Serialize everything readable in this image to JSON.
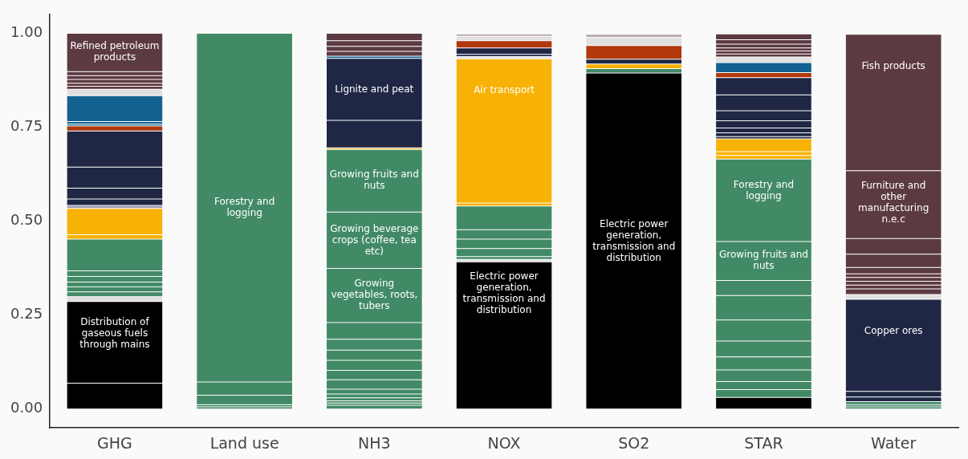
{
  "chart_data": {
    "type": "bar",
    "stacked": true,
    "categories": [
      "GHG",
      "Land use",
      "NH3",
      "NOX",
      "SO2",
      "STAR",
      "Water"
    ],
    "ylim": [
      -0.05,
      1.05
    ],
    "yticks": [
      {
        "value": 0,
        "label": "0.00"
      },
      {
        "value": 0.25,
        "label": "0.25"
      },
      {
        "value": 0.5,
        "label": "0.50"
      },
      {
        "value": 0.75,
        "label": "0.75"
      },
      {
        "value": 1,
        "label": "1.00"
      }
    ],
    "grid": false,
    "legend": false,
    "series": [
      {
        "color": "#000000",
        "values": [
          0.069,
          null,
          null,
          null,
          null,
          null,
          null
        ]
      },
      {
        "name": "Distribution of gaseous fuels through mains",
        "color": "#000000",
        "values": [
          0.217,
          null,
          null,
          null,
          null,
          null,
          null
        ]
      },
      {
        "color": "#e0e0e0",
        "values": [
          0.013,
          null,
          null,
          null,
          null,
          null,
          null
        ]
      },
      {
        "color": "#428a66",
        "values": [
          0.013,
          null,
          null,
          null,
          null,
          null,
          null
        ]
      },
      {
        "color": "#428a66",
        "values": [
          0.013,
          null,
          null,
          null,
          null,
          null,
          null
        ]
      },
      {
        "color": "#428a66",
        "values": [
          0.013,
          null,
          null,
          null,
          null,
          null,
          null
        ]
      },
      {
        "color": "#428a66",
        "values": [
          0.015,
          null,
          null,
          null,
          null,
          null,
          null
        ]
      },
      {
        "color": "#428a66",
        "values": [
          0.015,
          null,
          null,
          null,
          null,
          null,
          null
        ]
      },
      {
        "color": "#428a66",
        "values": [
          0.084,
          null,
          null,
          null,
          null,
          null,
          null
        ]
      },
      {
        "color": "#f8b205",
        "values": [
          0.012,
          null,
          null,
          null,
          null,
          null,
          null
        ]
      },
      {
        "color": "#f8b205",
        "values": [
          0.07,
          null,
          null,
          null,
          null,
          null,
          null
        ]
      },
      {
        "color": "#9a9cb0",
        "values": [
          0.008,
          null,
          null,
          null,
          null,
          null,
          null
        ]
      },
      {
        "color": "#1f2745",
        "values": [
          0.017,
          null,
          null,
          null,
          null,
          null,
          null
        ]
      },
      {
        "color": "#1f2745",
        "values": [
          0.029,
          null,
          null,
          null,
          null,
          null,
          null
        ]
      },
      {
        "color": "#1f2745",
        "values": [
          0.056,
          null,
          null,
          null,
          null,
          null,
          null
        ]
      },
      {
        "color": "#1f2745",
        "values": [
          0.096,
          null,
          null,
          null,
          null,
          null,
          null
        ]
      },
      {
        "color": "#b0380b",
        "values": [
          0.013,
          null,
          null,
          null,
          null,
          null,
          null
        ]
      },
      {
        "color": "#136191",
        "values": [
          0.005,
          null,
          null,
          null,
          null,
          null,
          null
        ]
      },
      {
        "color": "#136191",
        "values": [
          0.007,
          null,
          null,
          null,
          null,
          null,
          null
        ]
      },
      {
        "color": "#136191",
        "values": [
          0.069,
          null,
          null,
          null,
          null,
          null,
          null
        ]
      },
      {
        "color": "#e0e0e0",
        "values": [
          0.017,
          null,
          null,
          null,
          null,
          null,
          null
        ]
      },
      {
        "color": "#5c3a42",
        "values": [
          0.008,
          null,
          null,
          null,
          null,
          null,
          null
        ]
      },
      {
        "color": "#5c3a42",
        "values": [
          0.008,
          null,
          null,
          null,
          null,
          null,
          null
        ]
      },
      {
        "color": "#5c3a42",
        "values": [
          0.01,
          null,
          null,
          null,
          null,
          null,
          null
        ]
      },
      {
        "color": "#5c3a42",
        "values": [
          0.01,
          null,
          null,
          null,
          null,
          null,
          null
        ]
      },
      {
        "color": "#5c3a42",
        "values": [
          0.011,
          null,
          null,
          null,
          null,
          null,
          null
        ]
      },
      {
        "name": "Refined petroleum products",
        "color": "#5c3a42",
        "values": [
          0.102,
          null,
          null,
          null,
          null,
          null,
          null
        ]
      },
      {
        "color": "#428a66",
        "values": [
          null,
          0.006,
          null,
          null,
          null,
          null,
          null
        ]
      },
      {
        "color": "#428a66",
        "values": [
          null,
          0.006,
          null,
          null,
          null,
          null,
          null
        ]
      },
      {
        "color": "#428a66",
        "values": [
          null,
          0.025,
          null,
          null,
          null,
          null,
          null
        ]
      },
      {
        "color": "#428a66",
        "values": [
          null,
          0.035,
          null,
          null,
          null,
          null,
          null
        ]
      },
      {
        "name": "Forestry and logging",
        "color": "#428a66",
        "values": [
          null,
          0.928,
          null,
          null,
          null,
          null,
          null
        ]
      },
      {
        "color": "#428a66",
        "values": [
          null,
          null,
          0.01,
          null,
          null,
          null,
          null
        ]
      },
      {
        "color": "#428a66",
        "values": [
          null,
          null,
          0.006,
          null,
          null,
          null,
          null
        ]
      },
      {
        "color": "#428a66",
        "values": [
          null,
          null,
          0.006,
          null,
          null,
          null,
          null
        ]
      },
      {
        "color": "#428a66",
        "values": [
          null,
          null,
          0.008,
          null,
          null,
          null,
          null
        ]
      },
      {
        "color": "#428a66",
        "values": [
          null,
          null,
          0.01,
          null,
          null,
          null,
          null
        ]
      },
      {
        "color": "#428a66",
        "values": [
          null,
          null,
          0.013,
          null,
          null,
          null,
          null
        ]
      },
      {
        "color": "#428a66",
        "values": [
          null,
          null,
          0.025,
          null,
          null,
          null,
          null
        ]
      },
      {
        "color": "#428a66",
        "values": [
          null,
          null,
          0.025,
          null,
          null,
          null,
          null
        ]
      },
      {
        "color": "#428a66",
        "values": [
          null,
          null,
          0.027,
          null,
          null,
          null,
          null
        ]
      },
      {
        "color": "#428a66",
        "values": [
          null,
          null,
          0.027,
          null,
          null,
          null,
          null
        ]
      },
      {
        "color": "#428a66",
        "values": [
          null,
          null,
          0.029,
          null,
          null,
          null,
          null
        ]
      },
      {
        "color": "#428a66",
        "values": [
          null,
          null,
          0.044,
          null,
          null,
          null,
          null
        ]
      },
      {
        "name": "Growing vegetables, roots, tubers",
        "color": "#428a66",
        "values": [
          null,
          null,
          0.144,
          null,
          null,
          null,
          null
        ]
      },
      {
        "name": "Growing beverage crops (coffee, tea etc)",
        "color": "#428a66",
        "values": [
          null,
          null,
          0.15,
          null,
          null,
          null,
          null
        ]
      },
      {
        "name": "Growing fruits and nuts",
        "color": "#428a66",
        "values": [
          null,
          null,
          0.167,
          null,
          null,
          null,
          null
        ]
      },
      {
        "color": "#f8b205",
        "values": [
          null,
          null,
          0.004,
          null,
          null,
          null,
          null
        ]
      },
      {
        "color": "#1f2745",
        "values": [
          null,
          null,
          0.073,
          null,
          null,
          null,
          null
        ]
      },
      {
        "name": "Lignite and peat",
        "color": "#1f2745",
        "values": [
          null,
          null,
          0.165,
          null,
          null,
          null,
          null
        ]
      },
      {
        "color": "#136191",
        "values": [
          null,
          null,
          0.006,
          null,
          null,
          null,
          null
        ]
      },
      {
        "color": "#5c3a42",
        "values": [
          null,
          null,
          0.013,
          null,
          null,
          null,
          null
        ]
      },
      {
        "color": "#5c3a42",
        "values": [
          null,
          null,
          0.013,
          null,
          null,
          null,
          null
        ]
      },
      {
        "color": "#5c3a42",
        "values": [
          null,
          null,
          0.015,
          null,
          null,
          null,
          null
        ]
      },
      {
        "color": "#5c3a42",
        "values": [
          null,
          null,
          0.02,
          null,
          null,
          null,
          null
        ]
      },
      {
        "name": "Electric power generation, transmission and distribution",
        "color": "#000000",
        "values": [
          null,
          null,
          null,
          0.392,
          null,
          null,
          null
        ]
      },
      {
        "color": "#e0e0e0",
        "values": [
          null,
          null,
          null,
          0.006,
          null,
          null,
          null
        ]
      },
      {
        "color": "#428a66",
        "values": [
          null,
          null,
          null,
          0.008,
          null,
          null,
          null
        ]
      },
      {
        "color": "#428a66",
        "values": [
          null,
          null,
          null,
          0.021,
          null,
          null,
          null
        ]
      },
      {
        "color": "#428a66",
        "values": [
          null,
          null,
          null,
          0.025,
          null,
          null,
          null
        ]
      },
      {
        "color": "#428a66",
        "values": [
          null,
          null,
          null,
          0.025,
          null,
          null,
          null
        ]
      },
      {
        "color": "#428a66",
        "values": [
          null,
          null,
          null,
          0.063,
          null,
          null,
          null
        ]
      },
      {
        "color": "#f8b205",
        "values": [
          null,
          null,
          null,
          0.008,
          null,
          null,
          null
        ]
      },
      {
        "name": "Air transport",
        "color": "#f8b205",
        "values": [
          null,
          null,
          null,
          0.384,
          null,
          null,
          null
        ]
      },
      {
        "color": "#e0e0e0",
        "values": [
          null,
          null,
          null,
          0.006,
          null,
          null,
          null
        ]
      },
      {
        "color": "#1f2745",
        "values": [
          null,
          null,
          null,
          0.006,
          null,
          null,
          null
        ]
      },
      {
        "color": "#1f2745",
        "values": [
          null,
          null,
          null,
          0.017,
          null,
          null,
          null
        ]
      },
      {
        "color": "#b0380b",
        "values": [
          null,
          null,
          null,
          0.019,
          null,
          null,
          null
        ]
      },
      {
        "color": "#e0e0e0",
        "values": [
          null,
          null,
          null,
          0.012,
          null,
          null,
          null
        ]
      },
      {
        "color": "#b9a8ac",
        "values": [
          null,
          null,
          null,
          0.006,
          null,
          null,
          null
        ]
      },
      {
        "name": "Electric power generation, transmission and distribution",
        "color": "#000000",
        "values": [
          null,
          null,
          null,
          null,
          0.894,
          null,
          null
        ]
      },
      {
        "color": "#428a66",
        "values": [
          null,
          null,
          null,
          null,
          0.012,
          null,
          null
        ]
      },
      {
        "color": "#f8b205",
        "values": [
          null,
          null,
          null,
          null,
          0.012,
          null,
          null
        ]
      },
      {
        "color": "#1f2745",
        "values": [
          null,
          null,
          null,
          null,
          0.013,
          null,
          null
        ]
      },
      {
        "color": "#b0380b",
        "values": [
          null,
          null,
          null,
          null,
          0.036,
          null,
          null
        ]
      },
      {
        "color": "#e0e0e0",
        "values": [
          null,
          null,
          null,
          null,
          0.022,
          null,
          null
        ]
      },
      {
        "color": "#b9a8ac",
        "values": [
          null,
          null,
          null,
          null,
          0.008,
          null,
          null
        ]
      },
      {
        "color": "#000000",
        "values": [
          null,
          null,
          null,
          null,
          null,
          0.031,
          null
        ]
      },
      {
        "color": "#428a66",
        "values": [
          null,
          null,
          null,
          null,
          null,
          0.021,
          null
        ]
      },
      {
        "color": "#428a66",
        "values": [
          null,
          null,
          null,
          null,
          null,
          0.021,
          null
        ]
      },
      {
        "color": "#428a66",
        "values": [
          null,
          null,
          null,
          null,
          null,
          0.031,
          null
        ]
      },
      {
        "color": "#428a66",
        "values": [
          null,
          null,
          null,
          null,
          null,
          0.035,
          null
        ]
      },
      {
        "color": "#428a66",
        "values": [
          null,
          null,
          null,
          null,
          null,
          0.042,
          null
        ]
      },
      {
        "color": "#428a66",
        "values": [
          null,
          null,
          null,
          null,
          null,
          0.056,
          null
        ]
      },
      {
        "color": "#428a66",
        "values": [
          null,
          null,
          null,
          null,
          null,
          0.065,
          null
        ]
      },
      {
        "color": "#428a66",
        "values": [
          null,
          null,
          null,
          null,
          null,
          0.04,
          null
        ]
      },
      {
        "name": "Growing fruits and nuts",
        "color": "#428a66",
        "values": [
          null,
          null,
          null,
          null,
          null,
          0.104,
          null
        ]
      },
      {
        "name": "Forestry and logging",
        "color": "#428a66",
        "values": [
          null,
          null,
          null,
          null,
          null,
          0.219,
          null
        ]
      },
      {
        "color": "#f8b205",
        "values": [
          null,
          null,
          null,
          null,
          null,
          0.01,
          null
        ]
      },
      {
        "color": "#f8b205",
        "values": [
          null,
          null,
          null,
          null,
          null,
          0.01,
          null
        ]
      },
      {
        "color": "#f8b205",
        "values": [
          null,
          null,
          null,
          null,
          null,
          0.034,
          null
        ]
      },
      {
        "color": "#1f2745",
        "values": [
          null,
          null,
          null,
          null,
          null,
          0.006,
          null
        ]
      },
      {
        "color": "#1f2745",
        "values": [
          null,
          null,
          null,
          null,
          null,
          0.01,
          null
        ]
      },
      {
        "color": "#1f2745",
        "values": [
          null,
          null,
          null,
          null,
          null,
          0.013,
          null
        ]
      },
      {
        "color": "#1f2745",
        "values": [
          null,
          null,
          null,
          null,
          null,
          0.019,
          null
        ]
      },
      {
        "color": "#1f2745",
        "values": [
          null,
          null,
          null,
          null,
          null,
          0.027,
          null
        ]
      },
      {
        "color": "#1f2745",
        "values": [
          null,
          null,
          null,
          null,
          null,
          0.042,
          null
        ]
      },
      {
        "color": "#1f2745",
        "values": [
          null,
          null,
          null,
          null,
          null,
          0.046,
          null
        ]
      },
      {
        "color": "#b0380b",
        "values": [
          null,
          null,
          null,
          null,
          null,
          0.013,
          null
        ]
      },
      {
        "color": "#136191",
        "values": [
          null,
          null,
          null,
          null,
          null,
          0.027,
          null
        ]
      },
      {
        "color": "#e0e0e0",
        "values": [
          null,
          null,
          null,
          null,
          null,
          0.015,
          null
        ]
      },
      {
        "color": "#5c3a42",
        "values": [
          null,
          null,
          null,
          null,
          null,
          0.008,
          null
        ]
      },
      {
        "color": "#5c3a42",
        "values": [
          null,
          null,
          null,
          null,
          null,
          0.008,
          null
        ]
      },
      {
        "color": "#5c3a42",
        "values": [
          null,
          null,
          null,
          null,
          null,
          0.008,
          null
        ]
      },
      {
        "color": "#5c3a42",
        "values": [
          null,
          null,
          null,
          null,
          null,
          0.01,
          null
        ]
      },
      {
        "color": "#5c3a42",
        "values": [
          null,
          null,
          null,
          null,
          null,
          0.012,
          null
        ]
      },
      {
        "color": "#5c3a42",
        "values": [
          null,
          null,
          null,
          null,
          null,
          0.015,
          null
        ]
      },
      {
        "color": "#428a66",
        "values": [
          null,
          null,
          null,
          null,
          null,
          null,
          0.006
        ]
      },
      {
        "color": "#428a66",
        "values": [
          null,
          null,
          null,
          null,
          null,
          null,
          0.006
        ]
      },
      {
        "color": "#428a66",
        "values": [
          null,
          null,
          null,
          null,
          null,
          null,
          0.008
        ]
      },
      {
        "color": "#1f2745",
        "values": [
          null,
          null,
          null,
          null,
          null,
          null,
          0.012
        ]
      },
      {
        "color": "#1f2745",
        "values": [
          null,
          null,
          null,
          null,
          null,
          null,
          0.015
        ]
      },
      {
        "name": "Copper ores",
        "color": "#1f2745",
        "values": [
          null,
          null,
          null,
          null,
          null,
          null,
          0.245
        ]
      },
      {
        "color": "#e0e0e0",
        "values": [
          null,
          null,
          null,
          null,
          null,
          null,
          0.013
        ]
      },
      {
        "color": "#5c3a42",
        "values": [
          null,
          null,
          null,
          null,
          null,
          null,
          0.015
        ]
      },
      {
        "color": "#5c3a42",
        "values": [
          null,
          null,
          null,
          null,
          null,
          null,
          0.01
        ]
      },
      {
        "color": "#5c3a42",
        "values": [
          null,
          null,
          null,
          null,
          null,
          null,
          0.01
        ]
      },
      {
        "color": "#5c3a42",
        "values": [
          null,
          null,
          null,
          null,
          null,
          null,
          0.01
        ]
      },
      {
        "color": "#5c3a42",
        "values": [
          null,
          null,
          null,
          null,
          null,
          null,
          0.01
        ]
      },
      {
        "color": "#5c3a42",
        "values": [
          null,
          null,
          null,
          null,
          null,
          null,
          0.017
        ]
      },
      {
        "color": "#5c3a42",
        "values": [
          null,
          null,
          null,
          null,
          null,
          null,
          0.035
        ]
      },
      {
        "color": "#5c3a42",
        "values": [
          null,
          null,
          null,
          null,
          null,
          null,
          0.042
        ]
      },
      {
        "name": "Furniture and other manufacturing n.e.c",
        "color": "#5c3a42",
        "values": [
          null,
          null,
          null,
          null,
          null,
          null,
          0.18
        ]
      },
      {
        "name": "Fish products",
        "color": "#5c3a42",
        "values": [
          null,
          null,
          null,
          null,
          null,
          null,
          0.363
        ]
      }
    ]
  }
}
